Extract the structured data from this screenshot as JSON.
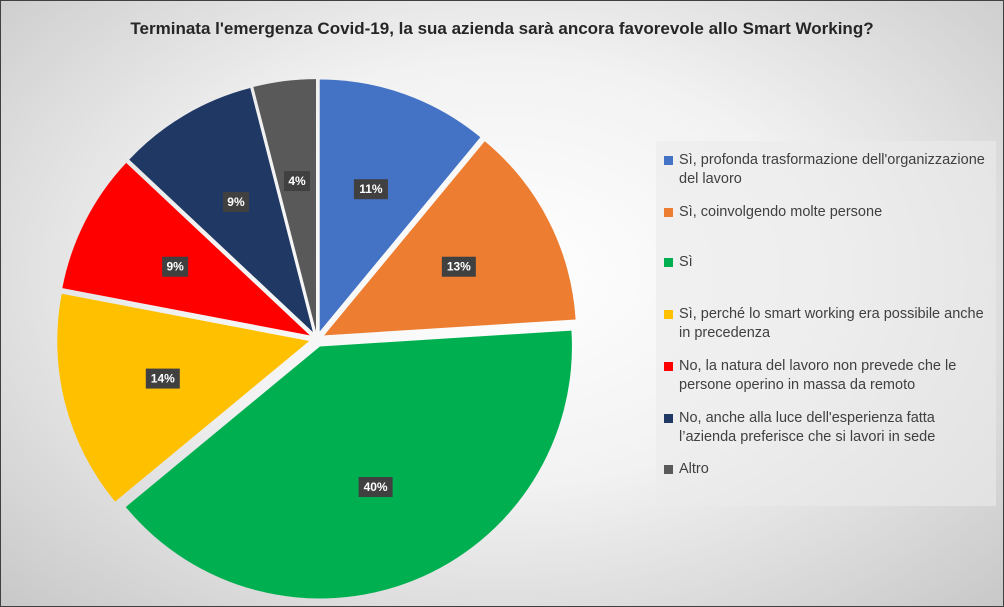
{
  "chart_data": {
    "type": "pie",
    "title": "Terminata l'emergenza Covid-19, la sua azienda sarà ancora favorevole allo Smart Working?",
    "legend_position": "right",
    "slices": [
      {
        "label": "Sì, profonda trasformazione dell'organizzazione del lavoro",
        "value": 11,
        "data_label": "11%",
        "color": "#4472C4"
      },
      {
        "label": "Sì, coinvolgendo molte persone",
        "value": 13,
        "data_label": "13%",
        "color": "#ED7D31"
      },
      {
        "label": "Sì",
        "value": 40,
        "data_label": "40%",
        "color": "#00B050"
      },
      {
        "label": "Sì, perché lo smart working era possibile anche in precedenza",
        "value": 14,
        "data_label": "14%",
        "color": "#FFC000"
      },
      {
        "label": "No, la natura del lavoro non prevede che le persone operino in massa da remoto",
        "value": 9,
        "data_label": "9%",
        "color": "#FF0000"
      },
      {
        "label": "No, anche alla luce dell'esperienza fatta l’azienda preferisce che si lavori in sede",
        "value": 9,
        "data_label": "9%",
        "color": "#1F3864"
      },
      {
        "label": "Altro",
        "value": 4,
        "data_label": "4%",
        "color": "#595959"
      }
    ]
  }
}
